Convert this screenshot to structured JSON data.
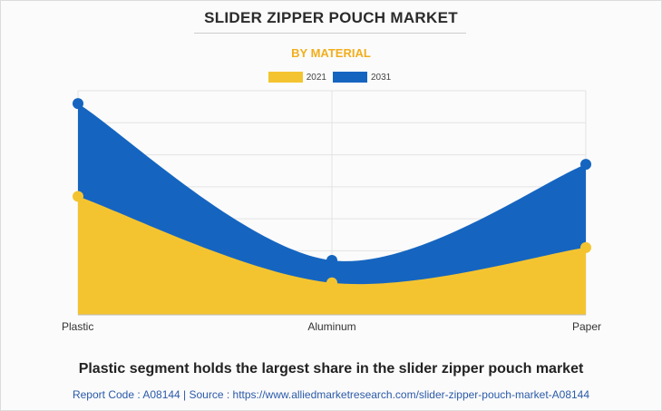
{
  "title": "SLIDER ZIPPER POUCH MARKET",
  "subtitle": "BY MATERIAL",
  "footer": {
    "headline": "Plastic segment holds the largest share in the slider zipper pouch market",
    "source": "Report Code : A08144  |  Source : https://www.alliedmarketresearch.com/slider-zipper-pouch-market-A08144"
  },
  "colors": {
    "series_2021": "#f4c430",
    "series_2031": "#1565c0",
    "subtitle": "#f2ae1c",
    "grid": "#e3e3e3"
  },
  "chart_data": {
    "type": "area",
    "categories": [
      "Plastic",
      "Aluminum",
      "Paper"
    ],
    "series": [
      {
        "name": "2021",
        "values": [
          3.7,
          1.0,
          2.1
        ]
      },
      {
        "name": "2031",
        "values": [
          6.6,
          1.7,
          4.7
        ]
      }
    ],
    "ylim": [
      0,
      7
    ],
    "grid": true,
    "legend": "top-center",
    "stacked": false
  }
}
